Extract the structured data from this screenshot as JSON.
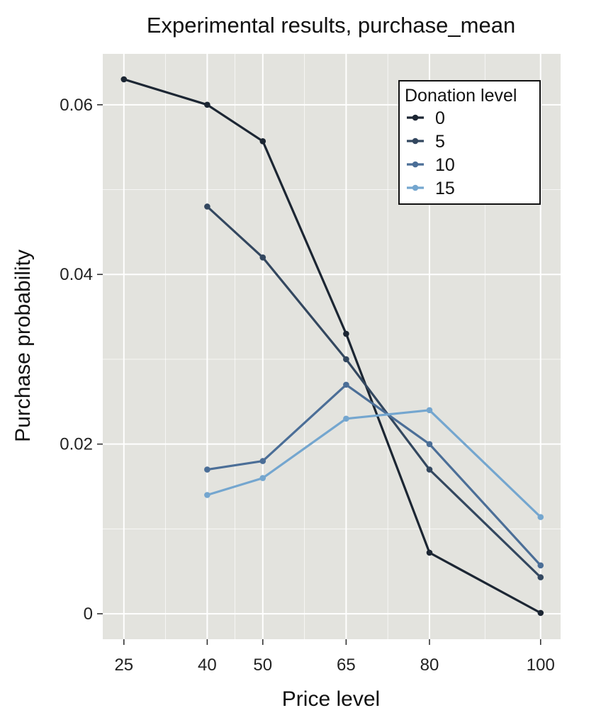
{
  "chart_data": {
    "type": "line",
    "title": "Experimental results, purchase_mean",
    "xlabel": "Price level",
    "ylabel": "Purchase probability",
    "x_ticks": [
      25,
      40,
      50,
      65,
      80,
      100
    ],
    "y_ticks": [
      0,
      0.02,
      0.04,
      0.06
    ],
    "y_tick_labels": [
      "0",
      "0.02",
      "0.04",
      "0.06"
    ],
    "xlim": [
      21.2,
      103.6
    ],
    "ylim": [
      -0.003,
      0.066
    ],
    "grid": true,
    "legend": {
      "title": "Donation level",
      "placement": "top-right"
    },
    "series": [
      {
        "name": "0",
        "color": "#1c2633",
        "x": [
          25,
          40,
          50,
          65,
          80,
          100
        ],
        "y": [
          0.063,
          0.06,
          0.0557,
          0.033,
          0.0072,
          0.0001
        ]
      },
      {
        "name": "5",
        "color": "#33475f",
        "x": [
          40,
          50,
          65,
          80,
          100
        ],
        "y": [
          0.048,
          0.042,
          0.03,
          0.017,
          0.0043
        ]
      },
      {
        "name": "10",
        "color": "#4b6e97",
        "x": [
          40,
          50,
          65,
          80,
          100
        ],
        "y": [
          0.017,
          0.018,
          0.027,
          0.02,
          0.0057
        ]
      },
      {
        "name": "15",
        "color": "#74a6cf",
        "x": [
          40,
          50,
          65,
          80,
          100
        ],
        "y": [
          0.014,
          0.016,
          0.023,
          0.024,
          0.0114
        ]
      }
    ]
  }
}
